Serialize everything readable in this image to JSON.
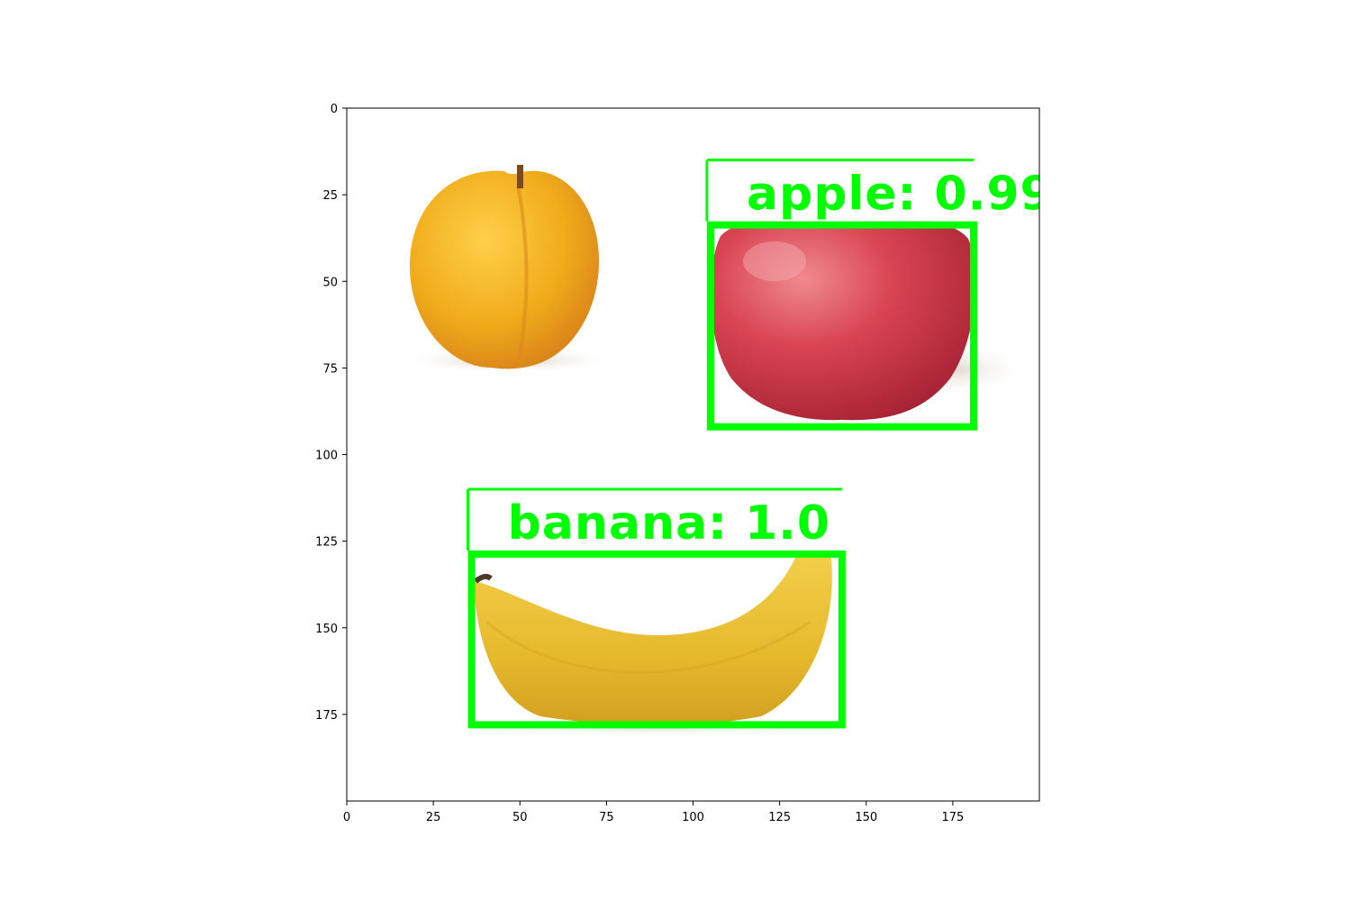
{
  "image_plot": {
    "x_range": [
      0,
      200
    ],
    "y_range": [
      0,
      200
    ],
    "y_axis_inverted": true,
    "x_ticks": [
      0,
      25,
      50,
      75,
      100,
      125,
      150,
      175
    ],
    "y_ticks": [
      0,
      25,
      50,
      75,
      100,
      125,
      150,
      175
    ],
    "x_tick_labels": [
      "0",
      "25",
      "50",
      "75",
      "100",
      "125",
      "150",
      "175"
    ],
    "y_tick_labels": [
      "0",
      "25",
      "50",
      "75",
      "100",
      "125",
      "150",
      "175"
    ]
  },
  "detections": [
    {
      "label_text": "apple: 0.99",
      "box": {
        "x1": 104,
        "y1": 15,
        "x2": 181,
        "y2": 92
      },
      "color": "#00ff00"
    },
    {
      "label_text": "banana: 1.0",
      "box": {
        "x1": 35,
        "y1": 110,
        "x2": 143,
        "y2": 178
      },
      "color": "#00ff00"
    }
  ],
  "objects": [
    {
      "name": "apricot",
      "color": "#f0ac1a"
    },
    {
      "name": "apple",
      "color": "#d23a48"
    },
    {
      "name": "banana",
      "color": "#e6bb2e"
    }
  ]
}
